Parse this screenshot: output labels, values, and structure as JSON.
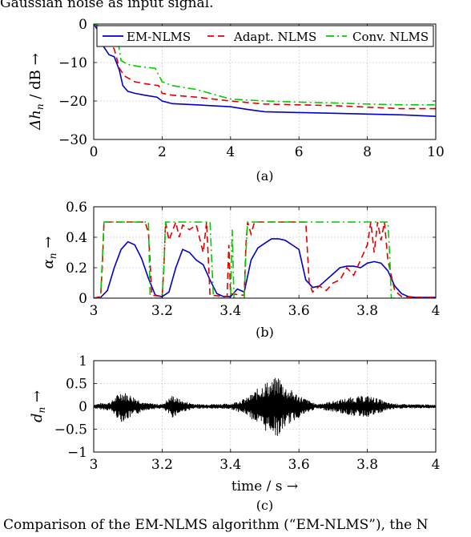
{
  "header_text": "Gaussian noise as input signal.",
  "caption_text": "Comparison of the EM-NLMS algorithm (“EM-NLMS”), the N",
  "colors": {
    "em": "#0000cc",
    "adapt": "#e00000",
    "conv": "#00cc00"
  },
  "chart_data": [
    {
      "type": "line",
      "label": "(a)",
      "xlabel": "",
      "ylabel": "Δh_n / dB →",
      "xlim": [
        0,
        10
      ],
      "ylim": [
        -30,
        0
      ],
      "xticks": [
        0,
        2,
        4,
        6,
        8,
        10
      ],
      "yticks": [
        0,
        -10,
        -20,
        -30
      ],
      "grid": true,
      "legend": "top-right",
      "series": [
        {
          "name": "EM-NLMS",
          "style": "solid",
          "color": "#0000cc",
          "x": [
            0,
            0.15,
            0.3,
            0.45,
            0.6,
            0.75,
            0.85,
            1.0,
            1.2,
            1.5,
            1.85,
            2.0,
            2.3,
            3.0,
            4.0,
            4.5,
            5.0,
            6.0,
            7.0,
            8.0,
            9.0,
            10.0
          ],
          "y": [
            0,
            -2,
            -6,
            -8,
            -8.5,
            -12,
            -16,
            -17.5,
            -18,
            -18.5,
            -19,
            -20,
            -20.7,
            -21,
            -21.5,
            -22.2,
            -22.8,
            -23,
            -23.2,
            -23.4,
            -23.6,
            -24
          ]
        },
        {
          "name": "Adapt. NLMS",
          "style": "dashed",
          "color": "#e00000",
          "x": [
            0,
            0.2,
            0.4,
            0.6,
            0.75,
            0.9,
            1.2,
            1.5,
            1.9,
            2.0,
            2.3,
            3.0,
            4.0,
            5.0,
            6.0,
            7.0,
            8.0,
            9.0,
            10.0
          ],
          "y": [
            0,
            -1,
            -4,
            -6.5,
            -11.5,
            -13.5,
            -15,
            -15.5,
            -16,
            -18,
            -18.5,
            -19,
            -20,
            -20.8,
            -21,
            -21.2,
            -21.6,
            -22,
            -22
          ]
        },
        {
          "name": "Conv. NLMS",
          "style": "dashdot",
          "color": "#00cc00",
          "x": [
            0,
            0.3,
            0.6,
            0.7,
            0.8,
            1.0,
            1.3,
            1.8,
            2.0,
            2.3,
            3.0,
            4.0,
            5.0,
            6.0,
            7.0,
            8.0,
            9.0,
            10.0
          ],
          "y": [
            0,
            -1,
            -2.5,
            -4,
            -9.5,
            -10.5,
            -11,
            -11.5,
            -15,
            -16,
            -17,
            -19.5,
            -20,
            -20.3,
            -20.5,
            -20.8,
            -21,
            -21
          ]
        }
      ]
    },
    {
      "type": "line",
      "label": "(b)",
      "xlabel": "",
      "ylabel": "α_n →",
      "xlim": [
        3,
        4
      ],
      "ylim": [
        0,
        0.6
      ],
      "xticks": [
        3,
        3.2,
        3.4,
        3.6,
        3.8,
        4
      ],
      "yticks": [
        0,
        0.2,
        0.4,
        0.6
      ],
      "grid": true,
      "series": [
        {
          "name": "EM-NLMS",
          "style": "solid",
          "color": "#0000cc",
          "x": [
            3.0,
            3.02,
            3.04,
            3.06,
            3.08,
            3.1,
            3.12,
            3.14,
            3.16,
            3.18,
            3.2,
            3.22,
            3.24,
            3.26,
            3.28,
            3.3,
            3.32,
            3.34,
            3.36,
            3.38,
            3.4,
            3.42,
            3.44,
            3.46,
            3.48,
            3.5,
            3.52,
            3.54,
            3.56,
            3.58,
            3.6,
            3.62,
            3.64,
            3.66,
            3.68,
            3.7,
            3.72,
            3.74,
            3.76,
            3.78,
            3.8,
            3.82,
            3.84,
            3.86,
            3.88,
            3.9,
            3.92,
            3.94,
            3.96,
            3.98,
            4.0
          ],
          "y": [
            0,
            0.005,
            0.05,
            0.2,
            0.32,
            0.37,
            0.35,
            0.26,
            0.13,
            0.02,
            0.01,
            0.04,
            0.2,
            0.32,
            0.3,
            0.25,
            0.22,
            0.12,
            0.03,
            0.01,
            0.01,
            0.06,
            0.04,
            0.25,
            0.33,
            0.36,
            0.39,
            0.39,
            0.38,
            0.35,
            0.32,
            0.12,
            0.07,
            0.08,
            0.12,
            0.16,
            0.2,
            0.21,
            0.21,
            0.2,
            0.23,
            0.24,
            0.23,
            0.18,
            0.08,
            0.03,
            0.01,
            0.005,
            0.005,
            0.005,
            0.005
          ]
        },
        {
          "name": "Adapt. NLMS",
          "style": "dashed",
          "color": "#e00000",
          "x": [
            3.0,
            3.02,
            3.025,
            3.03,
            3.15,
            3.16,
            3.17,
            3.2,
            3.205,
            3.21,
            3.22,
            3.24,
            3.25,
            3.26,
            3.28,
            3.3,
            3.32,
            3.33,
            3.34,
            3.39,
            3.395,
            3.4,
            3.43,
            3.44,
            3.445,
            3.45,
            3.46,
            3.47,
            3.62,
            3.63,
            3.64,
            3.66,
            3.68,
            3.7,
            3.72,
            3.74,
            3.76,
            3.78,
            3.8,
            3.81,
            3.82,
            3.83,
            3.84,
            3.85,
            3.86,
            3.88,
            3.9,
            3.95,
            4.0
          ],
          "y": [
            0,
            0.01,
            0.2,
            0.5,
            0.5,
            0.43,
            0.02,
            0.01,
            0.2,
            0.5,
            0.38,
            0.5,
            0.4,
            0.48,
            0.45,
            0.48,
            0.3,
            0.5,
            0.02,
            0.01,
            0.35,
            0.03,
            0.02,
            0.02,
            0.35,
            0.5,
            0.42,
            0.5,
            0.5,
            0.1,
            0.04,
            0.08,
            0.05,
            0.1,
            0.12,
            0.2,
            0.15,
            0.25,
            0.35,
            0.5,
            0.3,
            0.5,
            0.38,
            0.5,
            0.25,
            0.05,
            0.01,
            0.005,
            0.005
          ]
        },
        {
          "name": "Conv. NLMS",
          "style": "dashdot",
          "color": "#00cc00",
          "x": [
            3.0,
            3.02,
            3.025,
            3.03,
            3.14,
            3.16,
            3.165,
            3.2,
            3.205,
            3.21,
            3.33,
            3.34,
            3.35,
            3.4,
            3.405,
            3.41,
            3.43,
            3.44,
            3.445,
            3.45,
            3.86,
            3.865,
            3.87,
            4.0
          ],
          "y": [
            0,
            0,
            0.25,
            0.5,
            0.5,
            0.5,
            0,
            0,
            0.2,
            0.5,
            0.5,
            0.5,
            0,
            0,
            0.45,
            0,
            0,
            0,
            0.3,
            0.5,
            0.5,
            0.3,
            0,
            0
          ]
        }
      ]
    },
    {
      "type": "line",
      "label": "(c)",
      "xlabel": "time / s →",
      "ylabel": "d_n →",
      "xlim": [
        3,
        4
      ],
      "ylim": [
        -1,
        1
      ],
      "xticks": [
        3,
        3.2,
        3.4,
        3.6,
        3.8,
        4
      ],
      "yticks": [
        -1,
        -0.5,
        0,
        0.5,
        1
      ],
      "grid": true,
      "series": [
        {
          "name": "",
          "style": "solid",
          "color": "#000000",
          "x": [
            3.0,
            3.05,
            3.08,
            3.11,
            3.15,
            3.2,
            3.23,
            3.26,
            3.3,
            3.4,
            3.45,
            3.48,
            3.5,
            3.52,
            3.54,
            3.56,
            3.6,
            3.65,
            3.7,
            3.75,
            3.8,
            3.83,
            3.86,
            3.9,
            4.0
          ],
          "y": [
            0.05,
            0.1,
            0.35,
            0.25,
            0.08,
            0.05,
            0.25,
            0.12,
            0.05,
            0.06,
            0.2,
            0.4,
            0.55,
            0.55,
            0.7,
            0.45,
            0.25,
            0.05,
            0.12,
            0.2,
            0.24,
            0.18,
            0.08,
            0.05,
            0.04
          ]
        }
      ]
    }
  ]
}
